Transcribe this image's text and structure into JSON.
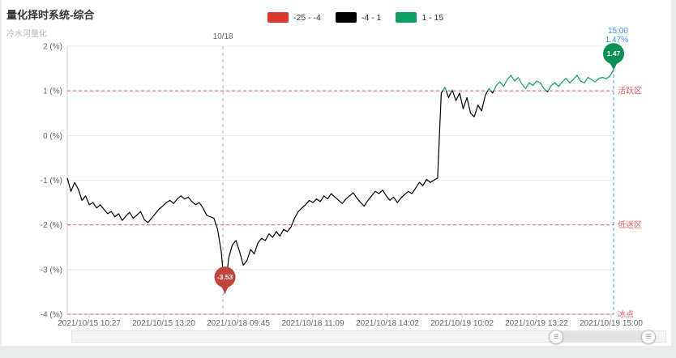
{
  "header": {
    "title": "量化择时系统-综合",
    "subtitle": "冷水河量化"
  },
  "legend": {
    "items": [
      {
        "label": "-25 - -4",
        "color": "#dc3832"
      },
      {
        "label": "-4 - 1",
        "color": "#000000"
      },
      {
        "label": "1 - 15",
        "color": "#0f9d66"
      }
    ]
  },
  "chart_data": {
    "type": "line",
    "title": "量化择时系统-综合",
    "ylim": [
      -4,
      2
    ],
    "y_values": [
      2,
      1,
      0,
      -1,
      -2,
      -3,
      -4
    ],
    "y_ticks": [
      "2 (%)",
      "1 (%)",
      "0 (%)",
      "-1 (%)",
      "-2 (%)",
      "-3 (%)",
      "-4 (%)"
    ],
    "x_ticks": [
      "2021/10/15 10:27",
      "2021/10/15 13:20",
      "2021/10/18 09:45",
      "2021/10/18 11:09",
      "2021/10/18 14:02",
      "2021/10/19 10:02",
      "2021/10/19 13:22",
      "2021/10/19 15:00"
    ],
    "series": [
      {
        "name": "综合",
        "values": [
          -0.95,
          -1.25,
          -1.05,
          -1.2,
          -1.45,
          -1.35,
          -1.55,
          -1.5,
          -1.62,
          -1.55,
          -1.65,
          -1.75,
          -1.7,
          -1.82,
          -1.75,
          -1.9,
          -1.8,
          -1.72,
          -1.85,
          -1.78,
          -1.7,
          -1.88,
          -1.95,
          -1.85,
          -1.75,
          -1.65,
          -1.58,
          -1.5,
          -1.45,
          -1.52,
          -1.42,
          -1.35,
          -1.42,
          -1.38,
          -1.48,
          -1.55,
          -1.5,
          -1.62,
          -1.78,
          -1.82,
          -1.85,
          -2.1,
          -2.6,
          -3.53,
          -2.75,
          -2.45,
          -2.35,
          -2.6,
          -2.9,
          -2.8,
          -2.55,
          -2.65,
          -2.4,
          -2.3,
          -2.35,
          -2.2,
          -2.28,
          -2.15,
          -2.25,
          -2.1,
          -2.15,
          -2.05,
          -1.85,
          -1.7,
          -1.62,
          -1.55,
          -1.45,
          -1.5,
          -1.42,
          -1.48,
          -1.35,
          -1.42,
          -1.3,
          -1.38,
          -1.45,
          -1.52,
          -1.42,
          -1.35,
          -1.28,
          -1.4,
          -1.5,
          -1.58,
          -1.45,
          -1.35,
          -1.25,
          -1.3,
          -1.22,
          -1.35,
          -1.45,
          -1.38,
          -1.5,
          -1.4,
          -1.32,
          -1.25,
          -1.3,
          -1.18,
          -1.05,
          -1.12,
          -0.98,
          -1.05,
          -1.0,
          -0.95,
          0.95,
          1.08,
          0.85,
          1.02,
          0.78,
          0.95,
          0.6,
          0.85,
          0.5,
          0.42,
          0.68,
          0.55,
          0.9,
          1.05,
          0.95,
          1.12,
          1.2,
          1.1,
          1.25,
          1.35,
          1.22,
          1.3,
          1.15,
          1.05,
          1.18,
          1.12,
          1.22,
          1.18,
          1.05,
          0.98,
          1.12,
          1.18,
          1.1,
          1.2,
          1.28,
          1.18,
          1.25,
          1.35,
          1.22,
          1.18,
          1.3,
          1.25,
          1.2,
          1.28,
          1.3,
          1.27,
          1.33,
          1.47
        ]
      }
    ],
    "thresholds": {
      "green_min": 1,
      "red_max": -4
    },
    "zones": [
      {
        "label": "活跃区",
        "value": 1
      },
      {
        "label": "低迷区",
        "value": -2
      },
      {
        "label": "冰点",
        "value": -4
      }
    ],
    "day_divider": {
      "label": "10/18",
      "position": 0.285
    },
    "current": {
      "time": "15:00",
      "value_label": "1.47%",
      "value": 1.47
    },
    "min_marker": {
      "value": -3.53,
      "label": "-3.53",
      "index": 43
    },
    "max_marker": {
      "value": 1.47,
      "label": "1.47",
      "index": 149
    },
    "colors": {
      "negative": "#000000",
      "positive": "#0f9d66",
      "pin_red": "#c0443c",
      "pin_green": "#0a8f57",
      "zone": "#e05c5c",
      "current": "#3898f0",
      "grid": "#e8e8e8",
      "axis": "#cccccc",
      "divider": "#b0b0b0",
      "text": "#666666"
    },
    "legend_position": "top"
  },
  "slider": {
    "handle_glyph": "≡"
  }
}
